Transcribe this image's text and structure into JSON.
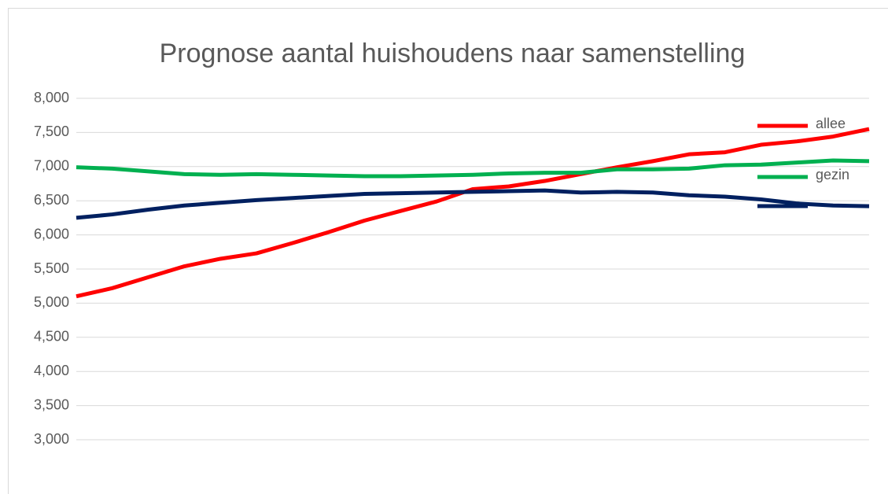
{
  "chart_data": {
    "type": "line",
    "title": "Prognose aantal huishoudens naar samenstelling",
    "categories": [
      null,
      null,
      null,
      null,
      null,
      null,
      null,
      null,
      null,
      null,
      null,
      null,
      null,
      null,
      null,
      null,
      null,
      null,
      null,
      null,
      null,
      null,
      null
    ],
    "series": [
      {
        "name": "allee",
        "color": "#ff0000",
        "values": [
          5100,
          5220,
          5380,
          5540,
          5650,
          5730,
          5880,
          6040,
          6210,
          6350,
          6490,
          6670,
          6710,
          6790,
          6890,
          6990,
          7080,
          7180,
          7210,
          7320,
          7370,
          7440,
          7550
        ]
      },
      {
        "name": "gezin",
        "color": "#00b050",
        "values": [
          6990,
          6970,
          6930,
          6890,
          6880,
          6890,
          6880,
          6870,
          6860,
          6860,
          6870,
          6880,
          6900,
          6910,
          6910,
          6960,
          6960,
          6970,
          7020,
          7030,
          7060,
          7090,
          7080
        ]
      },
      {
        "name": null,
        "color": "#002060",
        "values": [
          6250,
          6300,
          6370,
          6430,
          6470,
          6510,
          6540,
          6570,
          6600,
          6610,
          6620,
          6630,
          6640,
          6650,
          6620,
          6630,
          6620,
          6580,
          6560,
          6520,
          6460,
          6430,
          6420
        ]
      }
    ],
    "ylim": [
      3000,
      8000
    ],
    "yticks": [
      {
        "value": 3000,
        "label": "3,000"
      },
      {
        "value": 3500,
        "label": "3,500"
      },
      {
        "value": 4000,
        "label": "4,000"
      },
      {
        "value": 4500,
        "label": "4,500"
      },
      {
        "value": 5000,
        "label": "5,000"
      },
      {
        "value": 5500,
        "label": "5,500"
      },
      {
        "value": 6000,
        "label": "6,000"
      },
      {
        "value": 6500,
        "label": "6,500"
      },
      {
        "value": 7000,
        "label": "7,000"
      },
      {
        "value": 7500,
        "label": "7,500"
      },
      {
        "value": 8000,
        "label": "8,000"
      }
    ],
    "grid": true,
    "legend": "right"
  }
}
